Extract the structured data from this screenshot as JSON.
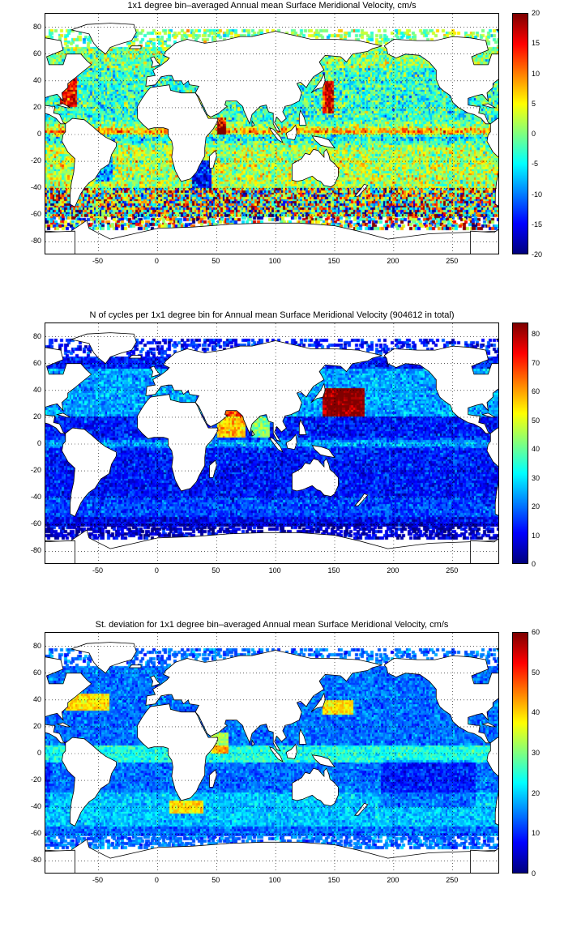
{
  "x_ticks": [
    "-50",
    "0",
    "50",
    "100",
    "150",
    "200",
    "250"
  ],
  "y_ticks": [
    "80",
    "60",
    "40",
    "20",
    "0",
    "-20",
    "-40",
    "-60",
    "-80"
  ],
  "colormap": "jet",
  "panels": [
    {
      "title": "1x1 degree bin–averaged Annual mean Surface Meridional Velocity, cm/s",
      "colorbar_ticks": [
        "20",
        "15",
        "10",
        "5",
        "0",
        "-5",
        "-10",
        "-15",
        "-20"
      ],
      "clim": [
        -20,
        20
      ],
      "field": "meridional-velocity"
    },
    {
      "title": "N of cycles per 1x1 degree bin for Annual mean Surface Meridional Velocity (904612 in total)",
      "colorbar_ticks": [
        "80",
        "70",
        "60",
        "50",
        "40",
        "30",
        "20",
        "10",
        "0"
      ],
      "clim": [
        0,
        84
      ],
      "field": "cycle-count"
    },
    {
      "title": "St. deviation for 1x1 degree bin–averaged Annual mean Surface Meridional Velocity, cm/s",
      "colorbar_ticks": [
        "60",
        "50",
        "40",
        "30",
        "20",
        "10",
        "0"
      ],
      "clim": [
        0,
        60
      ],
      "field": "std-deviation"
    }
  ],
  "map_extent": {
    "lon": [
      -95,
      290
    ],
    "lat": [
      -90,
      90
    ]
  },
  "grid": true
}
